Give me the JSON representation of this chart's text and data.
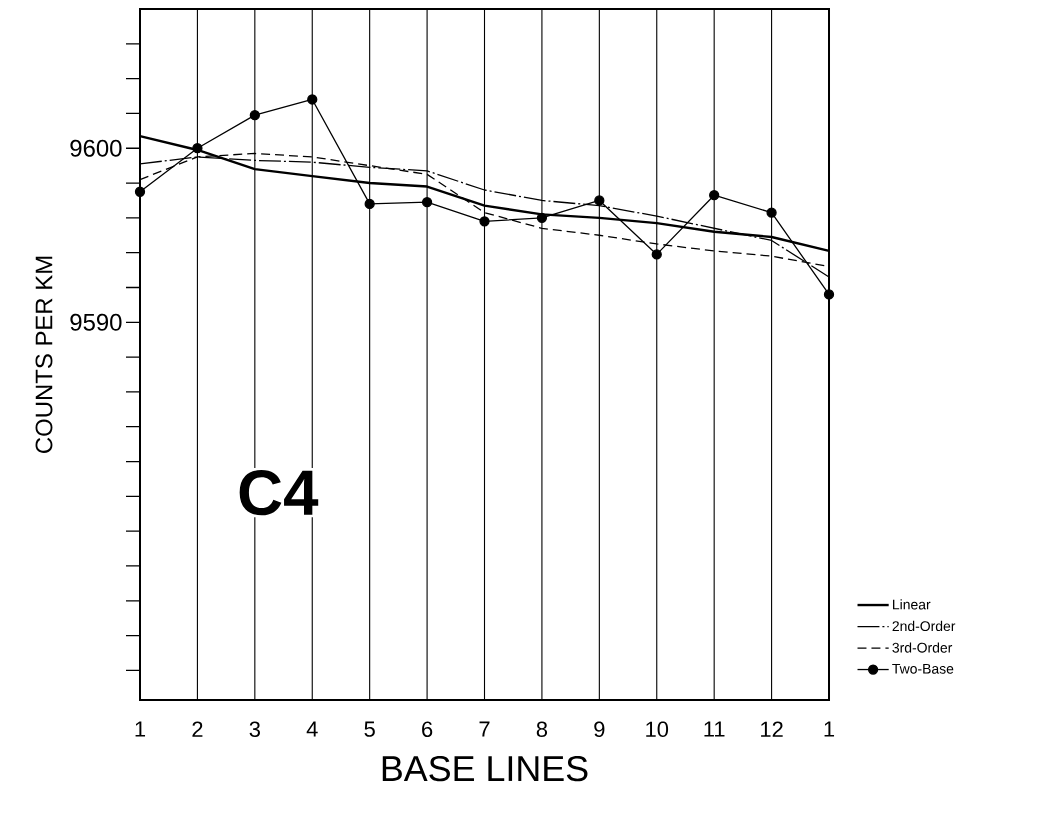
{
  "chart_data": {
    "type": "line",
    "ylabel": "COUNTS PER KM",
    "xlabel": "BASE LINES",
    "annotations": [
      "C4"
    ],
    "categories": [
      "1",
      "2",
      "3",
      "4",
      "5",
      "6",
      "7",
      "8",
      "9",
      "10",
      "11",
      "12",
      "1"
    ],
    "ylim": [
      9568.3,
      9608
    ],
    "yticks": [
      {
        "value": 9570,
        "label": null
      },
      {
        "value": 9572,
        "label": null
      },
      {
        "value": 9574,
        "label": null
      },
      {
        "value": 9576,
        "label": null
      },
      {
        "value": 9578,
        "label": null
      },
      {
        "value": 9580,
        "label": null
      },
      {
        "value": 9582,
        "label": null
      },
      {
        "value": 9584,
        "label": null
      },
      {
        "value": 9586,
        "label": null
      },
      {
        "value": 9588,
        "label": null
      },
      9590,
      {
        "value": 9592,
        "label": null
      },
      {
        "value": 9594,
        "label": null
      },
      {
        "value": 9596,
        "label": null
      },
      {
        "value": 9598,
        "label": null
      },
      9600,
      {
        "value": 9602,
        "label": null
      },
      {
        "value": 9604,
        "label": null
      },
      {
        "value": 9606,
        "label": null
      }
    ],
    "grid": "x",
    "legend": "right",
    "series": [
      {
        "name": "Linear",
        "color": "#000000",
        "line_style": "solid",
        "marker": "none",
        "values": [
          9600.7,
          9599.9,
          9598.8,
          9598.4,
          9598.0,
          9597.8,
          9596.7,
          9596.2,
          9596.0,
          9595.7,
          9595.2,
          9594.9,
          9594.1
        ]
      },
      {
        "name": "2nd-Order",
        "color": "#000000",
        "line_style": "dashdot",
        "marker": "none",
        "values": [
          9599.1,
          9599.5,
          9599.3,
          9599.2,
          9598.9,
          9598.7,
          9597.6,
          9597.0,
          9596.7,
          9596.1,
          9595.4,
          9594.7,
          9592.6
        ]
      },
      {
        "name": "3rd-Order",
        "color": "#000000",
        "line_style": "dashed",
        "marker": "none",
        "values": [
          9598.2,
          9599.5,
          9599.7,
          9599.5,
          9599.0,
          9598.5,
          9596.3,
          9595.4,
          9595.0,
          9594.5,
          9594.1,
          9593.8,
          9593.2
        ]
      },
      {
        "name": "Two-Base",
        "color": "#000000",
        "line_style": "solid",
        "marker": "circle",
        "values": [
          9597.5,
          9600.0,
          9601.9,
          9602.8,
          9596.8,
          9596.9,
          9595.8,
          9596.0,
          9597.0,
          9593.9,
          9597.3,
          9596.3,
          9591.6
        ]
      }
    ]
  }
}
